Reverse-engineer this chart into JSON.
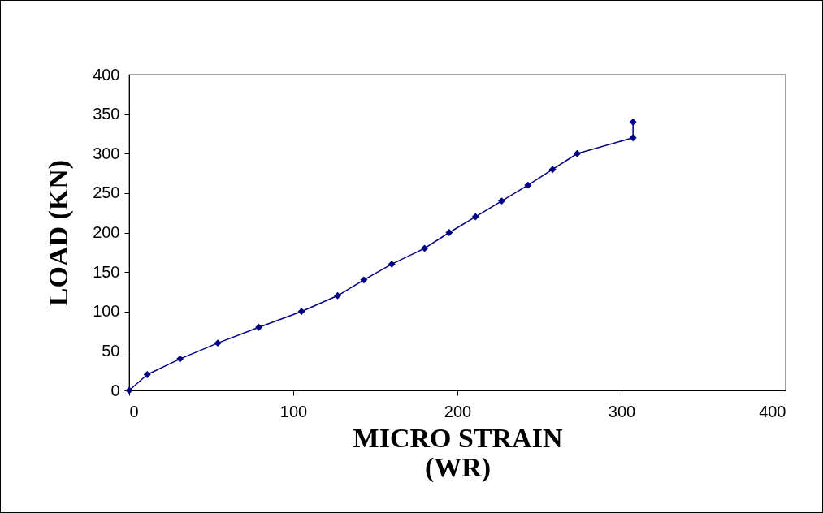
{
  "chart_data": {
    "type": "line",
    "xlabel": "MICRO STRAIN\n(WR)",
    "ylabel": "LOAD (KN)",
    "x": [
      0,
      11,
      31,
      54,
      79,
      105,
      127,
      143,
      160,
      180,
      195,
      211,
      227,
      243,
      258,
      273,
      307,
      307
    ],
    "series": [
      {
        "color": "#000080",
        "values": [
          0,
          20,
          40,
          60,
          80,
          100,
          120,
          140,
          160,
          180,
          200,
          220,
          240,
          260,
          280,
          300,
          320,
          340
        ]
      }
    ],
    "xlim": [
      0,
      400
    ],
    "xticks": [
      0,
      100,
      200,
      300,
      400
    ],
    "ylim": [
      0,
      400
    ],
    "yticks": [
      0,
      50,
      100,
      150,
      200,
      250,
      300,
      350,
      400
    ],
    "grid": false,
    "legend": false,
    "marker": "diamond",
    "line_style": "solid"
  }
}
